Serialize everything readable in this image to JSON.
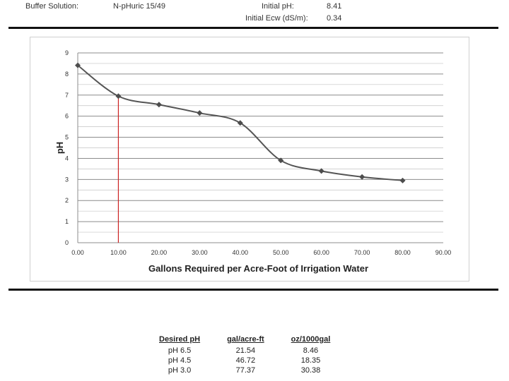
{
  "header": {
    "buffer_label": "Buffer Solution:",
    "buffer_value": "N-pHuric 15/49",
    "ph_label": "Initial pH:",
    "ph_value": "8.41",
    "ecw_label": "Initial Ecw (dS/m):",
    "ecw_value": "0.34"
  },
  "chart_data": {
    "type": "line",
    "title": "",
    "xlabel": "Gallons Required per Acre-Foot of Irrigation Water",
    "ylabel": "pH",
    "xlim": [
      0,
      90
    ],
    "ylim": [
      0,
      9
    ],
    "x_ticks": [
      "0.00",
      "10.00",
      "20.00",
      "30.00",
      "40.00",
      "50.00",
      "60.00",
      "70.00",
      "80.00",
      "90.00"
    ],
    "y_ticks": [
      "0",
      "1",
      "2",
      "3",
      "4",
      "5",
      "6",
      "7",
      "8",
      "9"
    ],
    "grid": "horizontal",
    "series": [
      {
        "color": "#555555",
        "x": [
          0,
          10,
          20,
          30,
          40,
          50,
          60,
          70,
          80
        ],
        "y": [
          8.41,
          6.95,
          6.55,
          6.15,
          5.68,
          3.9,
          3.4,
          3.12,
          2.95
        ]
      }
    ],
    "reference_line": {
      "x": 10,
      "color": "#cc2222"
    }
  },
  "results_table": {
    "headers": [
      "Desired pH",
      "gal/acre-ft",
      "oz/1000gal"
    ],
    "rows": [
      [
        "pH 6.5",
        "21.54",
        "8.46"
      ],
      [
        "pH 4.5",
        "46.72",
        "18.35"
      ],
      [
        "pH 3.0",
        "77.37",
        "30.38"
      ]
    ]
  }
}
